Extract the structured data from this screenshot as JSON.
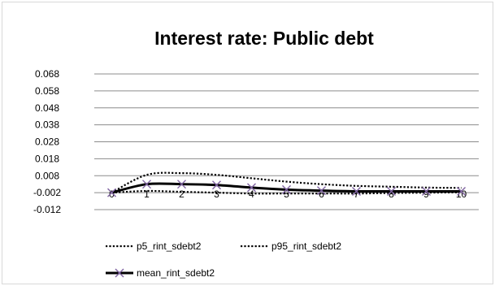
{
  "chart_data": {
    "type": "line",
    "title": "Interest rate: Public debt",
    "xlabel": "",
    "ylabel": "",
    "x": [
      0,
      1,
      2,
      3,
      4,
      5,
      6,
      7,
      8,
      9,
      10
    ],
    "x_tick_labels": [
      "0",
      "1",
      "2",
      "3",
      "4",
      "5",
      "6",
      "7",
      "8",
      "9",
      "10"
    ],
    "y_tick_labels": [
      "0.068",
      "0.058",
      "0.048",
      "0.038",
      "0.028",
      "0.018",
      "0.008",
      "-0.002",
      "-0.012"
    ],
    "ylim": [
      -0.012,
      0.068
    ],
    "grid": true,
    "legend_position": "bottom",
    "series": [
      {
        "name": "p5_rint_sdebt2",
        "style": "dotted",
        "color": "#000000",
        "values": [
          -0.002,
          -0.001,
          -0.0015,
          -0.002,
          -0.0025,
          -0.0025,
          -0.0025,
          -0.0025,
          -0.0022,
          -0.002,
          -0.0018
        ]
      },
      {
        "name": "p95_rint_sdebt2",
        "style": "dotted",
        "color": "#000000",
        "values": [
          -0.002,
          0.0085,
          0.0095,
          0.0085,
          0.0065,
          0.0045,
          0.003,
          0.002,
          0.0015,
          0.001,
          0.0008
        ]
      },
      {
        "name": "mean_rint_sdebt2",
        "style": "solid",
        "marker": "x",
        "color": "#000000",
        "marker_color": "#8064a2",
        "values": [
          -0.002,
          0.003,
          0.003,
          0.0025,
          0.001,
          -0.0002,
          -0.0008,
          -0.0012,
          -0.0012,
          -0.0012,
          -0.0012
        ]
      }
    ]
  }
}
